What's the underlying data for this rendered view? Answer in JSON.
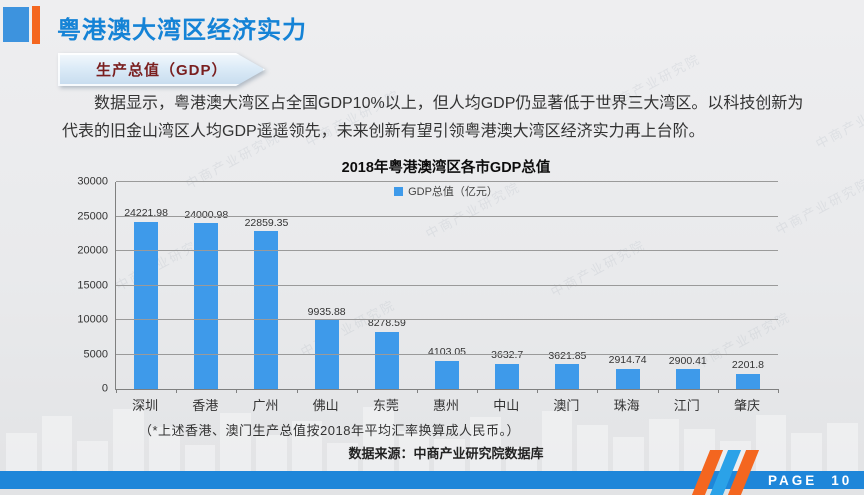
{
  "slide": {
    "title": "粤港澳大湾区经济实力",
    "section_label": "生产总值（GDP）",
    "paragraph": "数据显示，粤港澳大湾区占全国GDP10%以上，但人均GDP仍显著低于世界三大湾区。以科技创新为代表的旧金山湾区人均GDP遥遥领先，未来创新有望引领粤港澳大湾区经济实力再上台阶。",
    "footnote": "（*上述香港、澳门生产总值按2018年平均汇率换算成人民币。）",
    "source": "数据来源：中商产业研究院数据库",
    "watermark_text": "中商产业研究院",
    "footer": {
      "page_label": "PAGE",
      "page_number": "10"
    }
  },
  "chart_data": {
    "type": "bar",
    "title": "2018年粤港澳湾区各市GDP总值",
    "legend_label": "GDP总值（亿元）",
    "legend_position": "top-center",
    "categories": [
      "深圳",
      "香港",
      "广州",
      "佛山",
      "东莞",
      "惠州",
      "中山",
      "澳门",
      "珠海",
      "江门",
      "肇庆"
    ],
    "values": [
      24221.98,
      24000.98,
      22859.35,
      9935.88,
      8278.59,
      4103.05,
      3632.7,
      3621.85,
      2914.74,
      2900.41,
      2201.8
    ],
    "xlabel": "",
    "ylabel": "",
    "ylim": [
      0,
      30000
    ],
    "ytick_interval": 5000,
    "grid": true,
    "bar_color": "#3E9AEA"
  },
  "colors": {
    "title_blue": "#1583D6",
    "accent_orange": "#F4661F",
    "accent_blue": "#3D93DE",
    "bar_blue": "#3E9AEA",
    "footer_blue": "#1E86D9",
    "stripe_blue": "#2BA2E8",
    "ribbon_text": "#7A1F1F"
  }
}
